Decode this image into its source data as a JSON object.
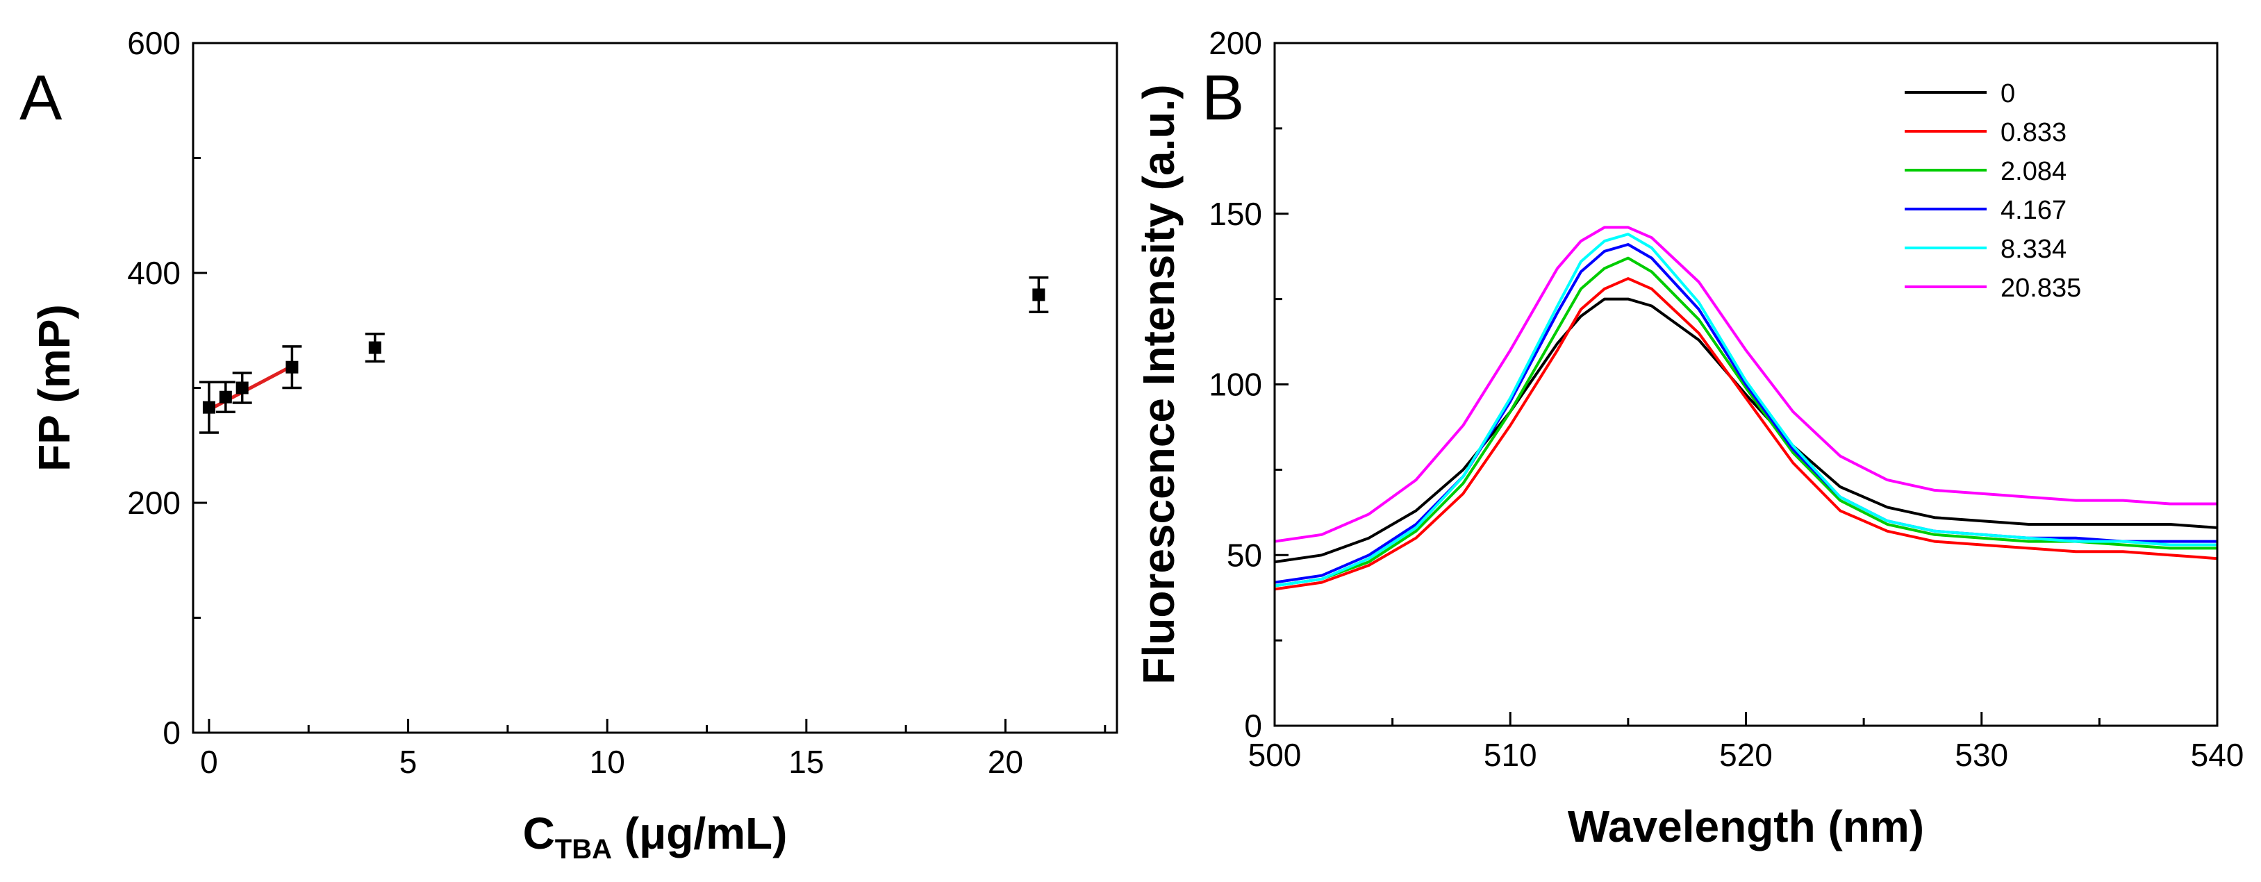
{
  "chart_data": [
    {
      "type": "scatter",
      "panel_label": "A",
      "xlabel_main": "C",
      "xlabel_sub": "TBA",
      "xlabel_unit": " (μg/mL)",
      "ylabel": "FP (mP)",
      "xlim": [
        -0.4,
        22.8
      ],
      "ylim": [
        0,
        600
      ],
      "xticks": [
        0,
        5,
        10,
        15,
        20
      ],
      "yticks": [
        0,
        200,
        400,
        600
      ],
      "points": [
        {
          "x": 0,
          "y": 283,
          "err": 22
        },
        {
          "x": 0.417,
          "y": 292,
          "err": 13
        },
        {
          "x": 0.833,
          "y": 300,
          "err": 13
        },
        {
          "x": 2.084,
          "y": 318,
          "err": 18
        },
        {
          "x": 4.167,
          "y": 335,
          "err": 12
        },
        {
          "x": 20.835,
          "y": 381,
          "err": 15
        }
      ],
      "fit_line": {
        "x": [
          0,
          2.084
        ],
        "y": [
          281,
          319
        ],
        "color": "#e02020"
      }
    },
    {
      "type": "line",
      "panel_label": "B",
      "xlabel": "Wavelength (nm)",
      "ylabel": "Fluorescence Intensity (a.u.)",
      "xlim": [
        500,
        540
      ],
      "ylim": [
        0,
        200
      ],
      "xticks": [
        500,
        510,
        520,
        530,
        540
      ],
      "yticks": [
        0,
        50,
        100,
        150,
        200
      ],
      "x": [
        500,
        502,
        504,
        506,
        508,
        510,
        512,
        513,
        514,
        515,
        516,
        518,
        520,
        522,
        524,
        526,
        528,
        530,
        532,
        534,
        536,
        538,
        540
      ],
      "series": [
        {
          "name": "0",
          "color": "#000000",
          "values": [
            48,
            50,
            55,
            63,
            75,
            92,
            112,
            120,
            125,
            125,
            123,
            113,
            97,
            82,
            70,
            64,
            61,
            60,
            59,
            59,
            59,
            59,
            58
          ]
        },
        {
          "name": "0.833",
          "color": "#ff0000",
          "values": [
            40,
            42,
            47,
            55,
            68,
            88,
            110,
            122,
            128,
            131,
            128,
            115,
            96,
            77,
            63,
            57,
            54,
            53,
            52,
            51,
            51,
            50,
            49
          ]
        },
        {
          "name": "2.084",
          "color": "#00cc00",
          "values": [
            41,
            43,
            48,
            57,
            71,
            92,
            116,
            128,
            134,
            137,
            133,
            119,
            99,
            80,
            66,
            59,
            56,
            55,
            54,
            54,
            53,
            52,
            52
          ]
        },
        {
          "name": "4.167",
          "color": "#0000ff",
          "values": [
            42,
            44,
            50,
            59,
            73,
            95,
            121,
            133,
            139,
            141,
            137,
            122,
            100,
            81,
            67,
            60,
            57,
            56,
            55,
            55,
            54,
            54,
            54
          ]
        },
        {
          "name": "8.334",
          "color": "#00ffff",
          "values": [
            41,
            43,
            49,
            58,
            73,
            96,
            123,
            136,
            142,
            144,
            140,
            124,
            101,
            82,
            67,
            60,
            57,
            56,
            55,
            54,
            54,
            53,
            53
          ]
        },
        {
          "name": "20.835",
          "color": "#ff00ff",
          "values": [
            54,
            56,
            62,
            72,
            88,
            110,
            134,
            142,
            146,
            146,
            143,
            130,
            110,
            92,
            79,
            72,
            69,
            68,
            67,
            66,
            66,
            65,
            65
          ]
        }
      ],
      "legend_position": "top-right"
    }
  ]
}
